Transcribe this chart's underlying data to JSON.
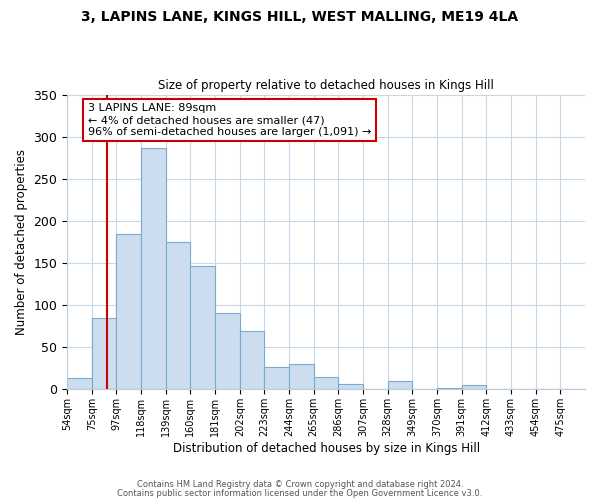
{
  "title1": "3, LAPINS LANE, KINGS HILL, WEST MALLING, ME19 4LA",
  "title2": "Size of property relative to detached houses in Kings Hill",
  "xlabel": "Distribution of detached houses by size in Kings Hill",
  "ylabel": "Number of detached properties",
  "bin_labels": [
    "54sqm",
    "75sqm",
    "97sqm",
    "118sqm",
    "139sqm",
    "160sqm",
    "181sqm",
    "202sqm",
    "223sqm",
    "244sqm",
    "265sqm",
    "286sqm",
    "307sqm",
    "328sqm",
    "349sqm",
    "370sqm",
    "391sqm",
    "412sqm",
    "433sqm",
    "454sqm",
    "475sqm"
  ],
  "bar_values": [
    13,
    85,
    185,
    287,
    175,
    146,
    91,
    69,
    27,
    30,
    15,
    6,
    0,
    10,
    0,
    2,
    5,
    0,
    0,
    0,
    0
  ],
  "bar_color": "#ccddf0",
  "bar_edge_color": "#7aaad0",
  "vline_color": "#cc0000",
  "annotation_text": "3 LAPINS LANE: 89sqm\n← 4% of detached houses are smaller (47)\n96% of semi-detached houses are larger (1,091) →",
  "annotation_box_color": "#ffffff",
  "annotation_box_edge_color": "#cc0000",
  "ylim": [
    0,
    350
  ],
  "yticks": [
    0,
    50,
    100,
    150,
    200,
    250,
    300,
    350
  ],
  "footer_line1": "Contains HM Land Registry data © Crown copyright and database right 2024.",
  "footer_line2": "Contains public sector information licensed under the Open Government Licence v3.0.",
  "bg_color": "#ffffff",
  "grid_color": "#c8d8e8",
  "vline_x_data": 1.62
}
